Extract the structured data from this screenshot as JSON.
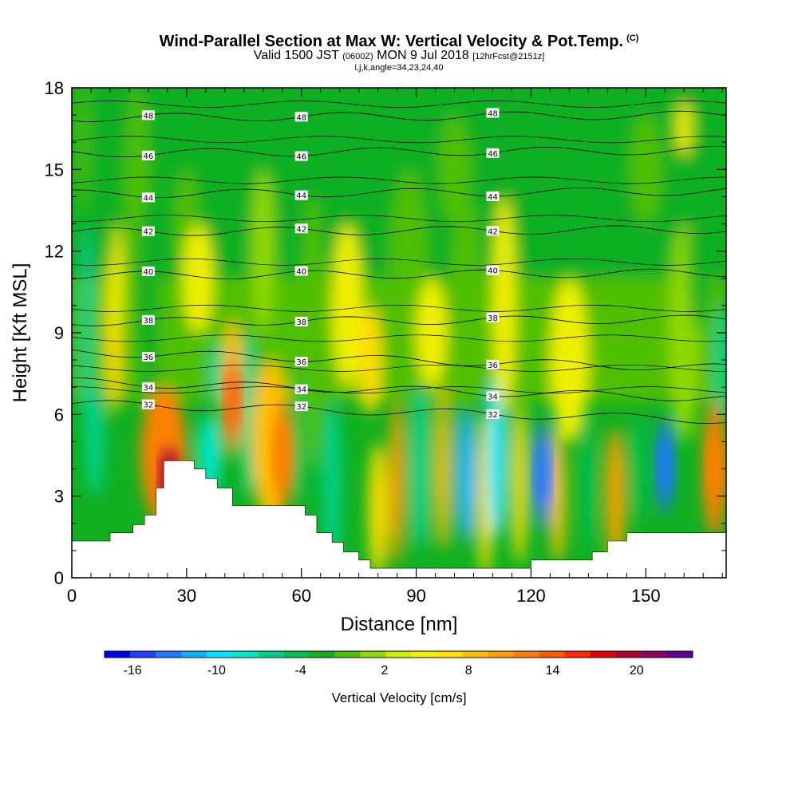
{
  "title": {
    "line1": "Wind-Parallel Section at Max W: Vertical Velocity & Pot.Temp.",
    "line1_sup": "(C)",
    "line2_a": "Valid 1500 JST",
    "line2_b": "(0600Z)",
    "line2_c": "MON 9 Jul 2018",
    "line2_d": "[12hrFcst@2151z]",
    "line3": "i,j,k,angle=34,23,24,40"
  },
  "chart_data": {
    "type": "heatmap",
    "xlabel": "Distance [nm]",
    "ylabel": "Height [Kft MSL]",
    "xlim": [
      0,
      171
    ],
    "ylim": [
      0,
      18
    ],
    "xticks": [
      0,
      30,
      60,
      90,
      120,
      150
    ],
    "yticks": [
      0,
      3,
      6,
      9,
      12,
      15,
      18
    ],
    "colorbar": {
      "title": "Vertical Velocity [cm/s]",
      "range": [
        -18,
        24
      ],
      "tick_labels": [
        -16,
        -10,
        -4,
        2,
        8,
        14,
        20
      ],
      "colors": [
        "#0000f0",
        "#1e40ff",
        "#1f78ff",
        "#00b4ff",
        "#00e6ff",
        "#00e6c8",
        "#00d28c",
        "#00c050",
        "#10b020",
        "#50c000",
        "#90d800",
        "#c8ee00",
        "#f0f000",
        "#ffde00",
        "#ffc000",
        "#ffa000",
        "#ff8000",
        "#ff5a00",
        "#ff2800",
        "#e00000",
        "#b00030",
        "#900060",
        "#600090"
      ]
    },
    "theta_contours": [
      {
        "label": "32",
        "height": 6.4
      },
      {
        "label": "34",
        "height": 7.2
      },
      {
        "label": "36",
        "height": 8.3
      },
      {
        "label": "38",
        "height": 9.4
      },
      {
        "label": "40",
        "height": 11.1
      },
      {
        "label": "42",
        "height": 12.7
      },
      {
        "label": "44",
        "height": 14.1
      },
      {
        "label": "46",
        "height": 15.6
      },
      {
        "label": "48",
        "height": 16.9
      }
    ],
    "terrain_profile": [
      [
        0,
        1.35
      ],
      [
        10,
        1.35
      ],
      [
        10,
        1.65
      ],
      [
        16,
        1.65
      ],
      [
        16,
        1.95
      ],
      [
        19,
        1.95
      ],
      [
        19,
        2.3
      ],
      [
        22,
        2.3
      ],
      [
        22,
        3.3
      ],
      [
        24,
        3.3
      ],
      [
        24,
        4.3
      ],
      [
        32,
        4.3
      ],
      [
        32,
        4.0
      ],
      [
        35,
        4.0
      ],
      [
        35,
        3.65
      ],
      [
        38,
        3.65
      ],
      [
        38,
        3.3
      ],
      [
        42,
        3.3
      ],
      [
        42,
        2.65
      ],
      [
        61,
        2.65
      ],
      [
        61,
        2.3
      ],
      [
        64,
        2.3
      ],
      [
        64,
        1.65
      ],
      [
        68,
        1.65
      ],
      [
        68,
        1.3
      ],
      [
        71,
        1.3
      ],
      [
        71,
        0.95
      ],
      [
        75,
        0.95
      ],
      [
        75,
        0.65
      ],
      [
        78,
        0.65
      ],
      [
        78,
        0.35
      ],
      [
        120,
        0.35
      ],
      [
        120,
        0.65
      ],
      [
        136,
        0.65
      ],
      [
        136,
        0.95
      ],
      [
        140,
        0.95
      ],
      [
        140,
        1.35
      ],
      [
        145,
        1.35
      ],
      [
        145,
        1.65
      ],
      [
        171,
        1.65
      ]
    ],
    "w_maxima": [
      {
        "x": 25,
        "height": 3.6,
        "w": 20
      },
      {
        "x": 42,
        "height": 6.5,
        "w": 14
      },
      {
        "x": 55,
        "height": 4.5,
        "w": 13
      },
      {
        "x": 123,
        "height": 3.8,
        "w": -14
      },
      {
        "x": 155,
        "height": 4.1,
        "w": -14
      },
      {
        "x": 168,
        "height": 4.0,
        "w": 12
      }
    ]
  }
}
